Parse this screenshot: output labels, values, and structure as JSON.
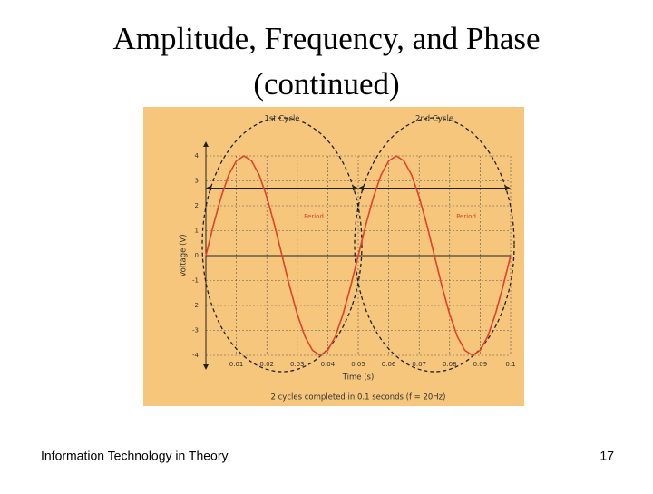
{
  "slide_title": [
    "Amplitude, Frequency, and Phase",
    "(continued)"
  ],
  "footer": "Information Technology in Theory",
  "page_number": "17",
  "chart_data": {
    "type": "line",
    "x_label": "Time (s)",
    "y_label": "Voltage (V)",
    "caption": "2 cycles completed in 0.1 seconds (f = 20Hz)",
    "cycle_labels": [
      "1st Cycle",
      "2nd Cycle"
    ],
    "period_labels": [
      "Period",
      "Period"
    ],
    "xlim": [
      0,
      0.1
    ],
    "ylim": [
      -4,
      4
    ],
    "xticks": [
      0.01,
      0.02,
      0.03,
      0.04,
      0.05,
      0.06,
      0.07,
      0.08,
      0.09,
      0.1
    ],
    "yticks": [
      -4,
      -3,
      -2,
      -1,
      0,
      1,
      2,
      3,
      4
    ],
    "grid": true,
    "x": [
      0,
      0.0025,
      0.005,
      0.0075,
      0.01,
      0.0125,
      0.015,
      0.0175,
      0.02,
      0.0225,
      0.025,
      0.0275,
      0.03,
      0.0325,
      0.035,
      0.0375,
      0.04,
      0.0425,
      0.045,
      0.0475,
      0.05,
      0.0525,
      0.055,
      0.0575,
      0.06,
      0.0625,
      0.065,
      0.0675,
      0.07,
      0.0725,
      0.075,
      0.0775,
      0.08,
      0.0825,
      0.085,
      0.0875,
      0.09,
      0.0925,
      0.095,
      0.0975,
      0.1
    ],
    "series": [
      {
        "color": "#e0422a",
        "values": [
          0,
          1.24,
          2.35,
          3.24,
          3.8,
          4,
          3.8,
          3.24,
          2.35,
          1.24,
          0,
          -1.24,
          -2.35,
          -3.24,
          -3.8,
          -4,
          -3.8,
          -3.24,
          -2.35,
          -1.24,
          0,
          1.24,
          2.35,
          3.24,
          3.8,
          4,
          3.8,
          3.24,
          2.35,
          1.24,
          0,
          -1.24,
          -2.35,
          -3.24,
          -3.8,
          -4,
          -3.8,
          -3.24,
          -2.35,
          -1.24,
          0
        ]
      }
    ]
  }
}
